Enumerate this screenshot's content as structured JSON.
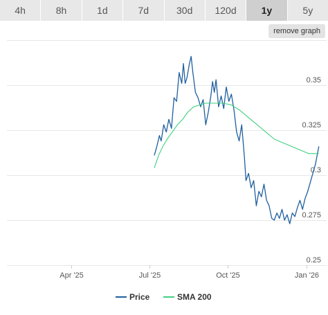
{
  "range_tabs": [
    {
      "label": "4h",
      "active": false
    },
    {
      "label": "8h",
      "active": false
    },
    {
      "label": "1d",
      "active": false
    },
    {
      "label": "7d",
      "active": false
    },
    {
      "label": "30d",
      "active": false
    },
    {
      "label": "120d",
      "active": false
    },
    {
      "label": "1y",
      "active": true
    },
    {
      "label": "5y",
      "active": false
    }
  ],
  "remove_graph_label": "remove graph",
  "colors": {
    "price": "#1f5f9e",
    "sma": "#3fcf7f",
    "grid": "#e6e6e6",
    "axis_text": "#555555"
  },
  "chart_data": {
    "type": "line",
    "x_tick_labels": [
      "Apr '25",
      "Jul '25",
      "Oct '25",
      "Jan '26"
    ],
    "x_tick_dates": [
      "2025-04-01",
      "2025-07-01",
      "2025-10-01",
      "2026-01-01"
    ],
    "x_range": [
      "2025-01-16",
      "2026-01-16"
    ],
    "y_tick_labels": [
      "0.25",
      "0.275",
      "0.3",
      "0.325",
      "0.35"
    ],
    "ylim": [
      0.25,
      0.375
    ],
    "grid": true,
    "legend_position": "bottom-center",
    "series": [
      {
        "name": "Price",
        "points": [
          [
            "2025-07-07",
            0.311
          ],
          [
            "2025-07-10",
            0.316
          ],
          [
            "2025-07-13",
            0.322
          ],
          [
            "2025-07-15",
            0.319
          ],
          [
            "2025-07-18",
            0.328
          ],
          [
            "2025-07-21",
            0.324
          ],
          [
            "2025-07-24",
            0.331
          ],
          [
            "2025-07-27",
            0.326
          ],
          [
            "2025-07-30",
            0.343
          ],
          [
            "2025-08-02",
            0.341
          ],
          [
            "2025-08-05",
            0.357
          ],
          [
            "2025-08-08",
            0.351
          ],
          [
            "2025-08-10",
            0.362
          ],
          [
            "2025-08-12",
            0.351
          ],
          [
            "2025-08-14",
            0.354
          ],
          [
            "2025-08-17",
            0.362
          ],
          [
            "2025-08-19",
            0.366
          ],
          [
            "2025-08-21",
            0.357
          ],
          [
            "2025-08-24",
            0.346
          ],
          [
            "2025-08-27",
            0.343
          ],
          [
            "2025-08-30",
            0.338
          ],
          [
            "2025-09-02",
            0.342
          ],
          [
            "2025-09-05",
            0.328
          ],
          [
            "2025-09-08",
            0.335
          ],
          [
            "2025-09-11",
            0.344
          ],
          [
            "2025-09-13",
            0.352
          ],
          [
            "2025-09-15",
            0.346
          ],
          [
            "2025-09-17",
            0.353
          ],
          [
            "2025-09-20",
            0.338
          ],
          [
            "2025-09-23",
            0.344
          ],
          [
            "2025-09-26",
            0.337
          ],
          [
            "2025-09-29",
            0.349
          ],
          [
            "2025-10-02",
            0.341
          ],
          [
            "2025-10-05",
            0.345
          ],
          [
            "2025-10-08",
            0.336
          ],
          [
            "2025-10-11",
            0.324
          ],
          [
            "2025-10-14",
            0.319
          ],
          [
            "2025-10-17",
            0.328
          ],
          [
            "2025-10-20",
            0.311
          ],
          [
            "2025-10-22",
            0.297
          ],
          [
            "2025-10-25",
            0.301
          ],
          [
            "2025-10-28",
            0.293
          ],
          [
            "2025-10-31",
            0.297
          ],
          [
            "2025-11-03",
            0.283
          ],
          [
            "2025-11-06",
            0.291
          ],
          [
            "2025-11-09",
            0.288
          ],
          [
            "2025-11-12",
            0.295
          ],
          [
            "2025-11-15",
            0.286
          ],
          [
            "2025-11-18",
            0.283
          ],
          [
            "2025-11-21",
            0.276
          ],
          [
            "2025-11-24",
            0.275
          ],
          [
            "2025-11-27",
            0.279
          ],
          [
            "2025-11-30",
            0.276
          ],
          [
            "2025-12-03",
            0.281
          ],
          [
            "2025-12-06",
            0.275
          ],
          [
            "2025-12-09",
            0.278
          ],
          [
            "2025-12-12",
            0.273
          ],
          [
            "2025-12-15",
            0.279
          ],
          [
            "2025-12-18",
            0.277
          ],
          [
            "2025-12-21",
            0.282
          ],
          [
            "2025-12-24",
            0.286
          ],
          [
            "2025-12-27",
            0.281
          ],
          [
            "2025-12-30",
            0.287
          ],
          [
            "2026-01-02",
            0.291
          ],
          [
            "2026-01-05",
            0.296
          ],
          [
            "2026-01-08",
            0.301
          ],
          [
            "2026-01-11",
            0.306
          ],
          [
            "2026-01-13",
            0.311
          ],
          [
            "2026-01-15",
            0.316
          ]
        ]
      },
      {
        "name": "SMA 200",
        "points": [
          [
            "2025-07-07",
            0.304
          ],
          [
            "2025-07-12",
            0.311
          ],
          [
            "2025-07-17",
            0.316
          ],
          [
            "2025-07-22",
            0.32
          ],
          [
            "2025-07-28",
            0.324
          ],
          [
            "2025-08-03",
            0.328
          ],
          [
            "2025-08-09",
            0.331
          ],
          [
            "2025-08-15",
            0.335
          ],
          [
            "2025-08-22",
            0.338
          ],
          [
            "2025-08-29",
            0.339
          ],
          [
            "2025-09-05",
            0.34
          ],
          [
            "2025-09-15",
            0.34
          ],
          [
            "2025-09-25",
            0.34
          ],
          [
            "2025-10-05",
            0.339
          ],
          [
            "2025-10-15",
            0.336
          ],
          [
            "2025-10-25",
            0.332
          ],
          [
            "2025-11-04",
            0.328
          ],
          [
            "2025-11-14",
            0.324
          ],
          [
            "2025-11-24",
            0.32
          ],
          [
            "2025-12-04",
            0.318
          ],
          [
            "2025-12-14",
            0.316
          ],
          [
            "2025-12-24",
            0.314
          ],
          [
            "2026-01-03",
            0.312
          ],
          [
            "2026-01-15",
            0.312
          ]
        ]
      }
    ]
  }
}
